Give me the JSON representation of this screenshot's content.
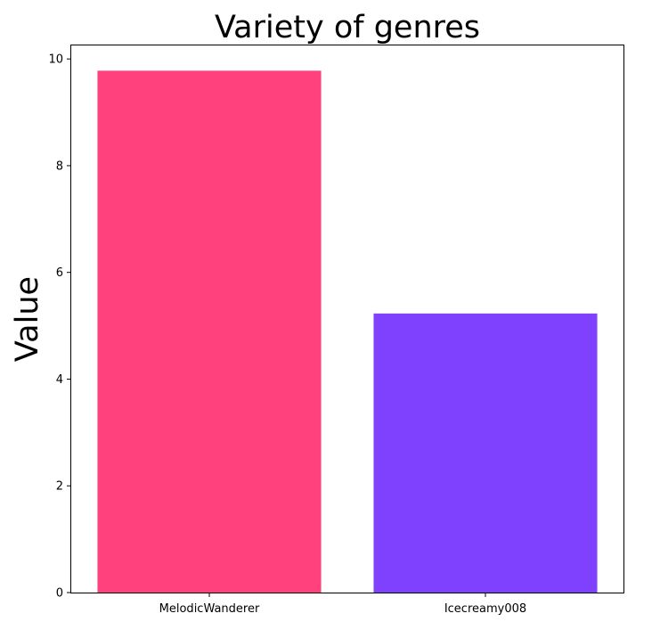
{
  "chart_data": {
    "type": "bar",
    "title": "Variety of genres",
    "xlabel": "",
    "ylabel": "Value",
    "categories": [
      "MelodicWanderer",
      "Icecreamy008"
    ],
    "values": [
      9.78,
      5.23
    ],
    "colors": [
      "#ff417d",
      "#8041ff"
    ],
    "ylim": [
      0,
      10.27
    ],
    "yticks": [
      0,
      2,
      4,
      6,
      8,
      10
    ],
    "grid": false,
    "legend": "none"
  }
}
